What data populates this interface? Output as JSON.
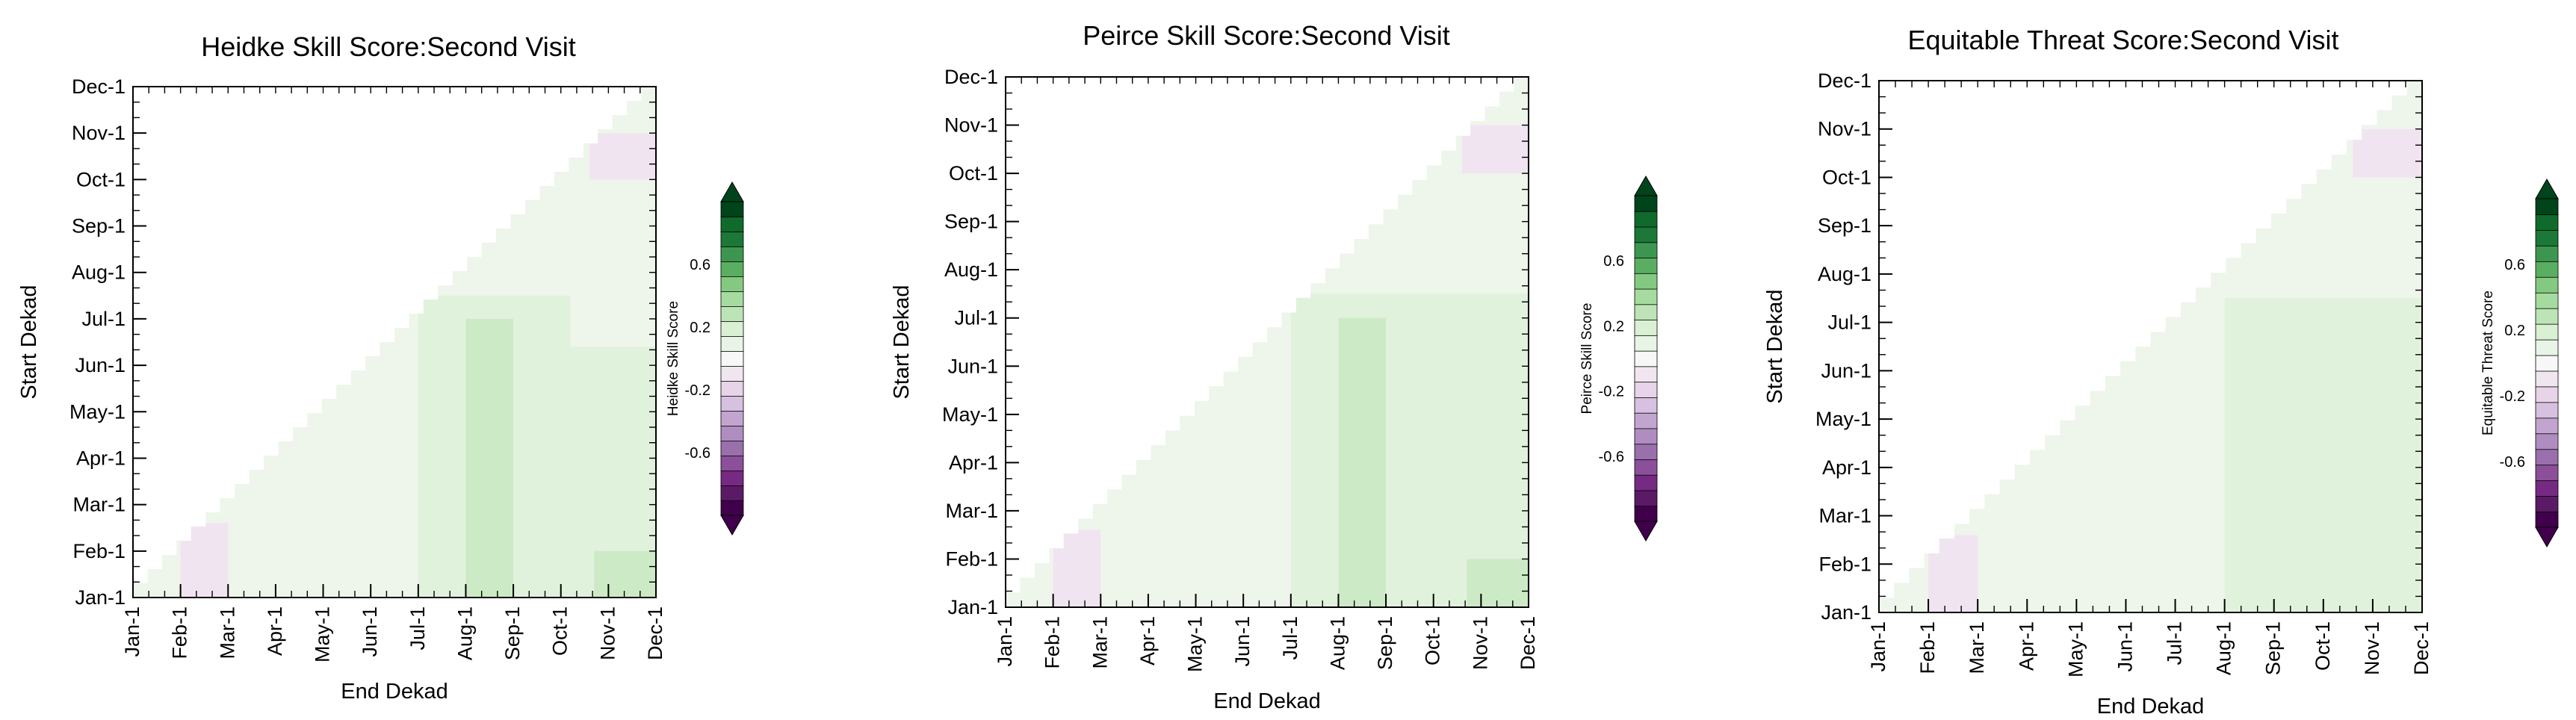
{
  "chart_data": [
    {
      "type": "heatmap",
      "title": "Heidke Skill Score:Second Visit",
      "xlabel": "End Dekad",
      "ylabel": "Start Dekad",
      "colorbar_label": "Heidke Skill Score",
      "x_ticks": [
        "Jan-1",
        "Feb-1",
        "Mar-1",
        "Apr-1",
        "May-1",
        "Jun-1",
        "Jul-1",
        "Aug-1",
        "Sep-1",
        "Oct-1",
        "Nov-1",
        "Dec-1"
      ],
      "y_ticks": [
        "Jan-1",
        "Feb-1",
        "Mar-1",
        "Apr-1",
        "May-1",
        "Jun-1",
        "Jul-1",
        "Aug-1",
        "Sep-1",
        "Oct-1",
        "Nov-1",
        "Dec-1"
      ],
      "colorbar_ticks": [
        "0.6",
        "0.2",
        "-0.2",
        "-0.6"
      ],
      "grid": false,
      "regions": [
        {
          "x": [
            1,
            12
          ],
          "y": [
            1,
            12
          ],
          "value": 0.05
        },
        {
          "x": [
            7,
            12
          ],
          "y": [
            1,
            7.5
          ],
          "value": 0.15
        },
        {
          "x": [
            8,
            9
          ],
          "y": [
            1,
            7
          ],
          "value": 0.25
        },
        {
          "x": [
            10.7,
            12
          ],
          "y": [
            1,
            2
          ],
          "value": 0.25
        },
        {
          "x": [
            10.9,
            12
          ],
          "y": [
            3.6,
            4.7
          ],
          "value": 0.15
        },
        {
          "x": [
            10.2,
            12
          ],
          "y": [
            6.4,
            7.5
          ],
          "value": 0.05
        },
        {
          "x": [
            2,
            3
          ],
          "y": [
            1,
            2.6
          ],
          "value": -0.15
        },
        {
          "x": [
            8.5,
            9.7
          ],
          "y": [
            8.2,
            8.9
          ],
          "value": -0.05
        },
        {
          "x": [
            10.6,
            12
          ],
          "y": [
            10,
            11
          ],
          "value": -0.15
        }
      ]
    },
    {
      "type": "heatmap",
      "title": "Peirce Skill Score:Second Visit",
      "xlabel": "End Dekad",
      "ylabel": "Start Dekad",
      "colorbar_label": "Peirce Skill Score",
      "x_ticks": [
        "Jan-1",
        "Feb-1",
        "Mar-1",
        "Apr-1",
        "May-1",
        "Jun-1",
        "Jul-1",
        "Aug-1",
        "Sep-1",
        "Oct-1",
        "Nov-1",
        "Dec-1"
      ],
      "y_ticks": [
        "Jan-1",
        "Feb-1",
        "Mar-1",
        "Apr-1",
        "May-1",
        "Jun-1",
        "Jul-1",
        "Aug-1",
        "Sep-1",
        "Oct-1",
        "Nov-1",
        "Dec-1"
      ],
      "colorbar_ticks": [
        "0.6",
        "0.2",
        "-0.2",
        "-0.6"
      ],
      "grid": false,
      "regions": [
        {
          "x": [
            1,
            12
          ],
          "y": [
            1,
            12
          ],
          "value": 0.05
        },
        {
          "x": [
            7,
            12
          ],
          "y": [
            1,
            7.5
          ],
          "value": 0.15
        },
        {
          "x": [
            8,
            9
          ],
          "y": [
            1,
            7
          ],
          "value": 0.25
        },
        {
          "x": [
            10.7,
            12
          ],
          "y": [
            1,
            2
          ],
          "value": 0.25
        },
        {
          "x": [
            2,
            3
          ],
          "y": [
            1,
            2.6
          ],
          "value": -0.15
        },
        {
          "x": [
            8.5,
            9.7
          ],
          "y": [
            8.2,
            8.9
          ],
          "value": -0.05
        },
        {
          "x": [
            10.6,
            12
          ],
          "y": [
            10,
            11
          ],
          "value": -0.15
        }
      ]
    },
    {
      "type": "heatmap",
      "title": "Equitable Threat Score:Second Visit",
      "xlabel": "End Dekad",
      "ylabel": "Start Dekad",
      "colorbar_label": "Equitable Threat Score",
      "x_ticks": [
        "Jan-1",
        "Feb-1",
        "Mar-1",
        "Apr-1",
        "May-1",
        "Jun-1",
        "Jul-1",
        "Aug-1",
        "Sep-1",
        "Oct-1",
        "Nov-1",
        "Dec-1"
      ],
      "y_ticks": [
        "Jan-1",
        "Feb-1",
        "Mar-1",
        "Apr-1",
        "May-1",
        "Jun-1",
        "Jul-1",
        "Aug-1",
        "Sep-1",
        "Oct-1",
        "Nov-1",
        "Dec-1"
      ],
      "colorbar_ticks": [
        "0.6",
        "0.2",
        "-0.2",
        "-0.6"
      ],
      "grid": false,
      "regions": [
        {
          "x": [
            1,
            12
          ],
          "y": [
            1,
            12
          ],
          "value": 0.05
        },
        {
          "x": [
            8,
            12
          ],
          "y": [
            1,
            7.5
          ],
          "value": 0.15
        },
        {
          "x": [
            2,
            3
          ],
          "y": [
            1,
            2.6
          ],
          "value": -0.15
        },
        {
          "x": [
            8.5,
            9.7
          ],
          "y": [
            8.2,
            8.9
          ],
          "value": -0.05
        },
        {
          "x": [
            10.6,
            12
          ],
          "y": [
            10,
            11
          ],
          "value": -0.15
        }
      ]
    }
  ]
}
